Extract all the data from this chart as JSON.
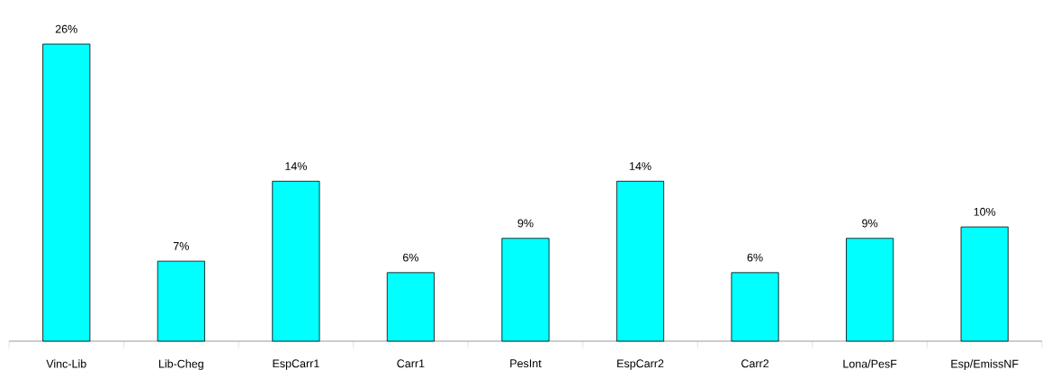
{
  "chart_data": {
    "type": "bar",
    "categories": [
      "Vinc-Lib",
      "Lib-Cheg",
      "EspCarr1",
      "Carr1",
      "PesInt",
      "EspCarr2",
      "Carr2",
      "Lona/PesF",
      "Esp/EmissNF"
    ],
    "values": [
      26,
      7,
      14,
      6,
      9,
      14,
      6,
      9,
      10
    ],
    "value_labels": [
      "26%",
      "7%",
      "14%",
      "6%",
      "9%",
      "14%",
      "6%",
      "9%",
      "10%"
    ],
    "color": "#00ffff"
  }
}
